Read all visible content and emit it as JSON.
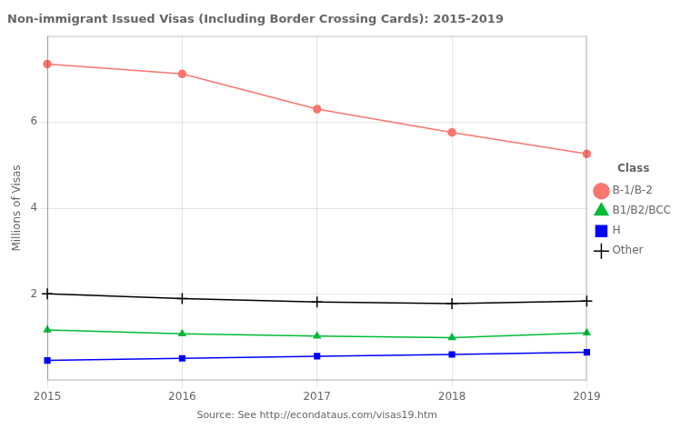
{
  "chart_data": {
    "type": "line",
    "title": "Non-immigrant Issued Visas (Including Border Crossing Cards): 2015-2019",
    "x_label": "Source: See http://econdataus.com/visas19.htm",
    "y_label": "Millions of Visas",
    "categories": [
      "2015",
      "2016",
      "2017",
      "2018",
      "2019"
    ],
    "series": [
      {
        "name": "B-1/B-2",
        "color": "#F8766D",
        "marker": "circle",
        "line_style": "solid",
        "values": [
          7.35,
          7.12,
          6.3,
          5.76,
          5.26
        ]
      },
      {
        "name": "B1/B2/BCC",
        "color": "#00BA38",
        "marker": "triangle",
        "line_style": "solid",
        "values": [
          1.17,
          1.08,
          1.03,
          0.99,
          1.1
        ]
      },
      {
        "name": "H",
        "color": "#0000FF",
        "marker": "square",
        "line_style": "solid",
        "values": [
          0.46,
          0.51,
          0.56,
          0.6,
          0.65
        ]
      },
      {
        "name": "Other",
        "color": "#000000",
        "marker": "plus",
        "line_style": "solid",
        "values": [
          2.01,
          1.9,
          1.82,
          1.78,
          1.84
        ]
      }
    ],
    "ylim": [
      0,
      8
    ],
    "yticks": [
      2,
      4,
      6
    ],
    "grid": true,
    "legend": "right",
    "legend_title": "Class"
  }
}
